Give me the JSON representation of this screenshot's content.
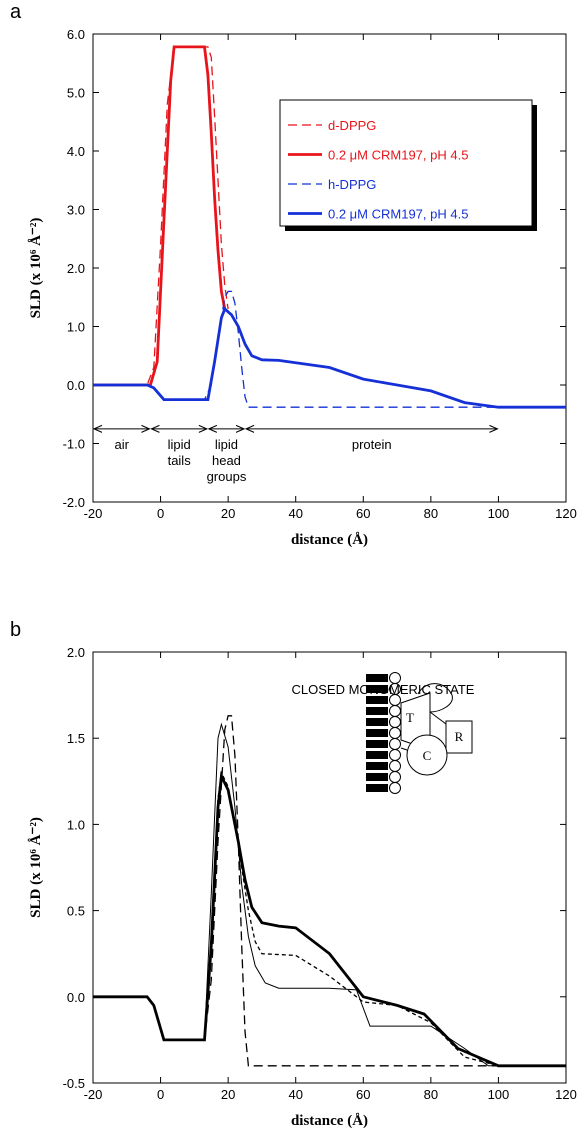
{
  "chart_data": [
    {
      "type": "line",
      "panel_label": "a",
      "x_label": "distance  (Å)",
      "y_label": "SLD  (x 10⁶ Å⁻²)",
      "xlim": [
        -20,
        120
      ],
      "xticks": [
        -20,
        0,
        20,
        40,
        60,
        80,
        100,
        120
      ],
      "ylim": [
        -2,
        6
      ],
      "yticks": [
        {
          "value": -2,
          "label": "-2.0"
        },
        {
          "value": -1,
          "label": "-1.0"
        },
        {
          "value": 0,
          "label": "0.0"
        },
        {
          "value": 1,
          "label": "1.0"
        },
        {
          "value": 2,
          "label": "2.0"
        },
        {
          "value": 3,
          "label": "3.0"
        },
        {
          "value": 4,
          "label": "4.0"
        },
        {
          "value": 5,
          "label": "5.0"
        },
        {
          "value": 6,
          "label": "6.0"
        }
      ],
      "legend": true,
      "series": [
        {
          "name": "d-DPPG",
          "color": "#e8141b",
          "style": "dashed",
          "weight": "normal",
          "x": [
            -20,
            -4,
            -2,
            0,
            2,
            4,
            14,
            15,
            16,
            17,
            18,
            19,
            20
          ],
          "values": [
            0,
            0,
            0.3,
            2.4,
            4.8,
            5.78,
            5.78,
            5.6,
            4.6,
            3.5,
            2.4,
            1.7,
            1.3
          ]
        },
        {
          "name": "0.2 μM CRM197,  pH 4.5",
          "color": "#e8141b",
          "style": "solid",
          "weight": "thick",
          "x": [
            -20,
            -3,
            -1,
            1,
            3,
            4,
            13,
            14,
            15,
            16,
            17,
            18,
            19
          ],
          "values": [
            0,
            0,
            0.4,
            2.8,
            5.2,
            5.78,
            5.78,
            5.3,
            4.3,
            3.2,
            2.3,
            1.6,
            1.3
          ]
        },
        {
          "name": "h-DPPG",
          "color": "#1530d6",
          "style": "dashed",
          "weight": "normal",
          "x": [
            -20,
            -4,
            -2,
            1,
            13,
            15,
            17,
            19,
            20,
            21,
            22,
            23,
            24,
            25,
            26,
            120
          ],
          "values": [
            0,
            0,
            -0.05,
            -0.25,
            -0.25,
            0,
            0.8,
            1.5,
            1.6,
            1.6,
            1.4,
            0.9,
            0.3,
            -0.2,
            -0.38,
            -0.38
          ]
        },
        {
          "name": "0.2 μM CRM197,  pH 4.5",
          "color": "#1530d6",
          "style": "solid",
          "weight": "thick",
          "x": [
            -20,
            -4,
            -2,
            1,
            14,
            16,
            18,
            19,
            21,
            23,
            25,
            27,
            30,
            35,
            40,
            50,
            60,
            70,
            80,
            90,
            100,
            120
          ],
          "values": [
            0,
            0,
            -0.05,
            -0.25,
            -0.25,
            0.4,
            1.15,
            1.3,
            1.2,
            1.0,
            0.7,
            0.5,
            0.43,
            0.42,
            0.38,
            0.3,
            0.1,
            0.0,
            -0.1,
            -0.3,
            -0.38,
            -0.38
          ]
        }
      ],
      "regions": [
        {
          "label": [
            "air"
          ],
          "from": -20,
          "to": -3
        },
        {
          "label": [
            "lipid",
            "tails"
          ],
          "from": -3,
          "to": 14
        },
        {
          "label": [
            "lipid",
            "head",
            "groups"
          ],
          "from": 14,
          "to": 25
        },
        {
          "label": [
            "protein"
          ],
          "from": 25,
          "to": 100
        }
      ]
    },
    {
      "type": "line",
      "panel_label": "b",
      "x_label": "distance  (Å)",
      "y_label": "SLD  (x 10⁶ Å⁻²)",
      "annotation": "CLOSED MONOMERIC STATE",
      "inset_labels": [
        "T",
        "C",
        "R"
      ],
      "xlim": [
        -20,
        120
      ],
      "xticks": [
        -20,
        0,
        20,
        40,
        60,
        80,
        100,
        120
      ],
      "ylim": [
        -0.5,
        2
      ],
      "yticks": [
        {
          "value": -0.5,
          "label": "-0.5"
        },
        {
          "value": 0,
          "label": "0.0"
        },
        {
          "value": 0.5,
          "label": "0.5"
        },
        {
          "value": 1,
          "label": "1.0"
        },
        {
          "value": 1.5,
          "label": "1.5"
        },
        {
          "value": 2,
          "label": "2.0"
        }
      ],
      "legend": false,
      "series": [
        {
          "color": "#000000",
          "style": "dashed",
          "weight": "normal",
          "x": [
            -20,
            -4,
            -2,
            1,
            13,
            15,
            17,
            19,
            20,
            21,
            22,
            23,
            24,
            25,
            26,
            120
          ],
          "values": [
            0,
            0,
            -0.05,
            -0.25,
            -0.25,
            0.1,
            0.9,
            1.55,
            1.63,
            1.63,
            1.4,
            0.9,
            0.3,
            -0.2,
            -0.4,
            -0.4
          ]
        },
        {
          "color": "#000000",
          "style": "solid",
          "weight": "thin",
          "x": [
            -20,
            -4,
            -2,
            1,
            13,
            15,
            17,
            18,
            20,
            22,
            24,
            26,
            28,
            31,
            35,
            50,
            58,
            62,
            80,
            90,
            97,
            120
          ],
          "values": [
            0,
            0,
            -0.05,
            -0.25,
            -0.25,
            0.6,
            1.5,
            1.58,
            1.45,
            1.1,
            0.65,
            0.35,
            0.18,
            0.08,
            0.05,
            0.05,
            0.04,
            -0.17,
            -0.17,
            -0.3,
            -0.4,
            -0.4
          ]
        },
        {
          "color": "#000000",
          "style": "dotted",
          "weight": "normal",
          "x": [
            -20,
            -4,
            -2,
            1,
            13,
            15,
            17,
            18,
            20,
            22,
            24,
            26,
            28,
            30,
            40,
            50,
            60,
            70,
            80,
            90,
            100,
            120
          ],
          "values": [
            0,
            0,
            -0.05,
            -0.25,
            -0.25,
            0.3,
            1.15,
            1.3,
            1.22,
            1.0,
            0.75,
            0.5,
            0.32,
            0.25,
            0.24,
            0.12,
            -0.03,
            -0.05,
            -0.15,
            -0.35,
            -0.4,
            -0.4
          ]
        },
        {
          "color": "#000000",
          "style": "solid",
          "weight": "thick",
          "x": [
            -20,
            -4,
            -2,
            1,
            13,
            15,
            17,
            18,
            20,
            23,
            25,
            27,
            30,
            35,
            40,
            50,
            60,
            70,
            78,
            88,
            100,
            120
          ],
          "values": [
            0,
            0,
            -0.05,
            -0.25,
            -0.25,
            0.3,
            1.1,
            1.28,
            1.2,
            0.9,
            0.68,
            0.52,
            0.43,
            0.41,
            0.4,
            0.25,
            0.0,
            -0.05,
            -0.1,
            -0.3,
            -0.4,
            -0.4
          ]
        }
      ]
    }
  ]
}
